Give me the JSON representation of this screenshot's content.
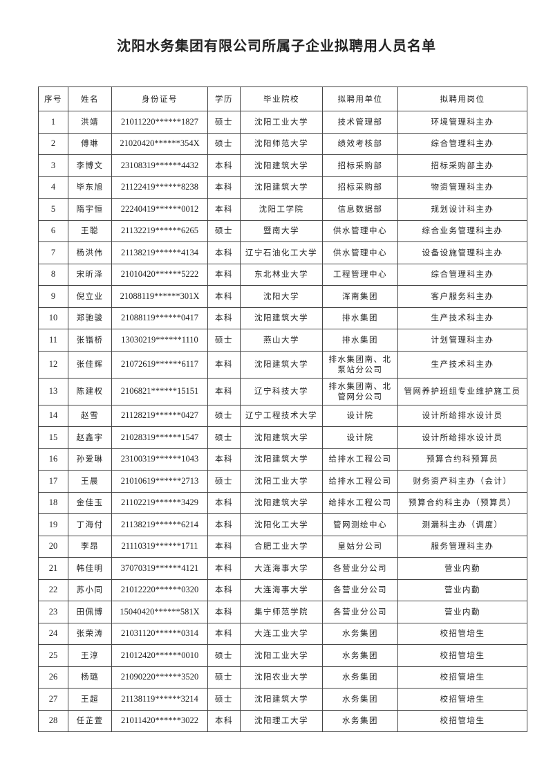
{
  "title": "沈阳水务集团有限公司所属子企业拟聘用人员名单",
  "headers": [
    "序号",
    "姓名",
    "身份证号",
    "学历",
    "毕业院校",
    "拟聘用单位",
    "拟聘用岗位"
  ],
  "rows": [
    [
      "1",
      "洪靖",
      "21011220******1827",
      "硕士",
      "沈阳工业大学",
      "技术管理部",
      "环境管理科主办"
    ],
    [
      "2",
      "傅琳",
      "21020420******354X",
      "硕士",
      "沈阳师范大学",
      "绩效考核部",
      "综合管理科主办"
    ],
    [
      "3",
      "李博文",
      "23108319******4432",
      "本科",
      "沈阳建筑大学",
      "招标采购部",
      "招标采购部主办"
    ],
    [
      "4",
      "毕东旭",
      "21122419******8238",
      "本科",
      "沈阳建筑大学",
      "招标采购部",
      "物资管理科主办"
    ],
    [
      "5",
      "隋宇恒",
      "22240419******0012",
      "本科",
      "沈阳工学院",
      "信息数据部",
      "规划设计科主办"
    ],
    [
      "6",
      "王聪",
      "21132219******6265",
      "硕士",
      "暨南大学",
      "供水管理中心",
      "综合业务管理科主办"
    ],
    [
      "7",
      "杨洪伟",
      "21138219******4134",
      "本科",
      "辽宁石油化工大学",
      "供水管理中心",
      "设备设施管理科主办"
    ],
    [
      "8",
      "宋昕泽",
      "21010420******5222",
      "本科",
      "东北林业大学",
      "工程管理中心",
      "综合管理科主办"
    ],
    [
      "9",
      "倪立业",
      "21088119******301X",
      "本科",
      "沈阳大学",
      "浑南集团",
      "客户服务科主办"
    ],
    [
      "10",
      "郑驰骏",
      "21088119******0417",
      "本科",
      "沈阳建筑大学",
      "排水集团",
      "生产技术科主办"
    ],
    [
      "11",
      "张锴桥",
      "13030219******1110",
      "硕士",
      "燕山大学",
      "排水集团",
      "计划管理科主办"
    ],
    [
      "12",
      "张佳辉",
      "21072619******6117",
      "本科",
      "沈阳建筑大学",
      "排水集团南、北泵站分公司",
      "生产技术科主办"
    ],
    [
      "13",
      "陈建权",
      "2106821******15151",
      "本科",
      "辽宁科技大学",
      "排水集团南、北管网分公司",
      "管网养护班组专业维护施工员"
    ],
    [
      "14",
      "赵雪",
      "21128219******0427",
      "硕士",
      "辽宁工程技术大学",
      "设计院",
      "设计所给排水设计员"
    ],
    [
      "15",
      "赵鑫宇",
      "21028319******1547",
      "硕士",
      "沈阳建筑大学",
      "设计院",
      "设计所给排水设计员"
    ],
    [
      "16",
      "孙爱琳",
      "23100319******1043",
      "本科",
      "沈阳建筑大学",
      "给排水工程公司",
      "预算合约科预算员"
    ],
    [
      "17",
      "王晨",
      "21010619******2713",
      "硕士",
      "沈阳工业大学",
      "给排水工程公司",
      "财务资产科主办（会计）"
    ],
    [
      "18",
      "金佳玉",
      "21102219******3429",
      "本科",
      "沈阳建筑大学",
      "给排水工程公司",
      "预算合约科主办（预算员）"
    ],
    [
      "19",
      "丁海付",
      "21138219******6214",
      "本科",
      "沈阳化工大学",
      "管网测绘中心",
      "测漏科主办（调度）"
    ],
    [
      "20",
      "李昂",
      "21110319******1711",
      "本科",
      "合肥工业大学",
      "皇姑分公司",
      "服务管理科主办"
    ],
    [
      "21",
      "韩佳明",
      "37070319******4121",
      "本科",
      "大连海事大学",
      "各营业分公司",
      "营业内勤"
    ],
    [
      "22",
      "苏小同",
      "21012220******0320",
      "本科",
      "大连海事大学",
      "各营业分公司",
      "营业内勤"
    ],
    [
      "23",
      "田佩博",
      "15040420******581X",
      "本科",
      "集宁师范学院",
      "各营业分公司",
      "营业内勤"
    ],
    [
      "24",
      "张荣涛",
      "21031120******0314",
      "本科",
      "大连工业大学",
      "水务集团",
      "校招管培生"
    ],
    [
      "25",
      "王淳",
      "21012420******0010",
      "硕士",
      "沈阳工业大学",
      "水务集团",
      "校招管培生"
    ],
    [
      "26",
      "杨璐",
      "21090220******3520",
      "硕士",
      "沈阳农业大学",
      "水务集团",
      "校招管培生"
    ],
    [
      "27",
      "王超",
      "21138119******3214",
      "硕士",
      "沈阳建筑大学",
      "水务集团",
      "校招管培生"
    ],
    [
      "28",
      "任芷萱",
      "21011420******3022",
      "本科",
      "沈阳理工大学",
      "水务集团",
      "校招管培生"
    ]
  ]
}
